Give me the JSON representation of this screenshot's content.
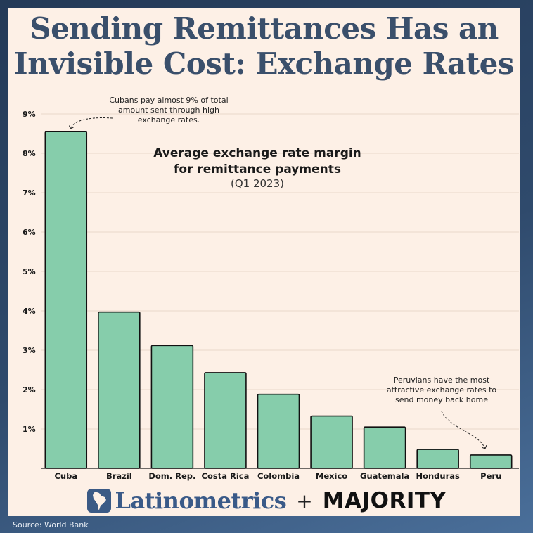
{
  "title_lines": [
    "Sending Remittances Has an",
    "Invisible Cost: Exchange Rates"
  ],
  "chart_data": {
    "type": "bar",
    "title": "Average exchange rate margin for remittance payments",
    "title_lines": [
      "Average exchange rate margin",
      "for remittance payments"
    ],
    "subtitle": "(Q1 2023)",
    "categories": [
      "Cuba",
      "Brazil",
      "Dom. Rep.",
      "Costa Rica",
      "Colombia",
      "Mexico",
      "Guatemala",
      "Honduras",
      "Peru"
    ],
    "values": [
      8.55,
      3.97,
      3.12,
      2.43,
      1.88,
      1.33,
      1.05,
      0.48,
      0.34
    ],
    "unit": "%",
    "ylim": [
      0,
      9
    ],
    "yticks": [
      "1%",
      "2%",
      "3%",
      "4%",
      "5%",
      "6%",
      "7%",
      "8%",
      "9%"
    ],
    "grid": true,
    "bar_color": "#86cdab",
    "annotations": [
      {
        "target": "Cuba",
        "lines": [
          "Cubans pay almost 9% of total",
          "amount sent through high",
          "exchange rates."
        ]
      },
      {
        "target": "Peru",
        "lines": [
          "Peruvians have the most",
          "attractive exchange rates to",
          "send money back home"
        ]
      }
    ]
  },
  "footer": {
    "brand1": "Latinometrics",
    "brand1_icon": "latin-america-map-icon",
    "plus": "+",
    "brand2": "MAJORITY"
  },
  "source": "Source: World Bank"
}
